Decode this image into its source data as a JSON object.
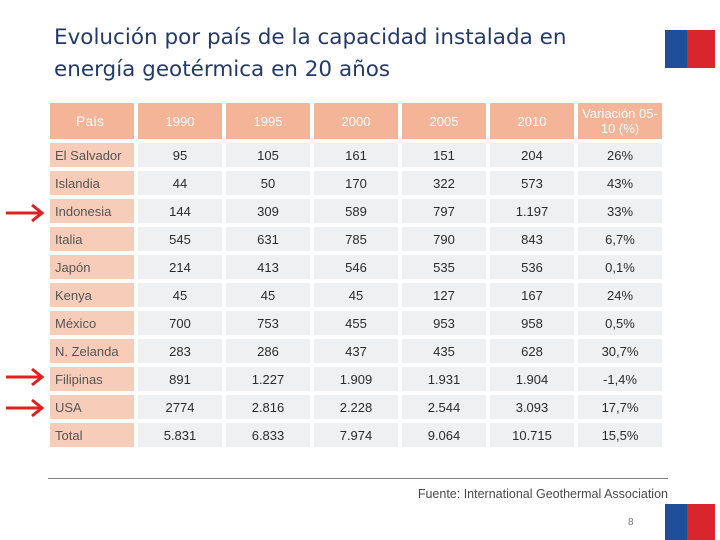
{
  "slide": {
    "title": "Evolución por país de la capacidad instalada en energía geotérmica en 20 años",
    "source": "Fuente: International Geothermal Association",
    "page_number": "8"
  },
  "table": {
    "headers": [
      "País",
      "1990",
      "1995",
      "2000",
      "2005",
      "2010",
      "Variación 05-10 (%)"
    ],
    "rows": [
      [
        "El Salvador",
        "95",
        "105",
        "161",
        "151",
        "204",
        "26%"
      ],
      [
        "Islandia",
        "44",
        "50",
        "170",
        "322",
        "573",
        "43%"
      ],
      [
        "Indonesia",
        "144",
        "309",
        "589",
        "797",
        "1.197",
        "33%"
      ],
      [
        "Italia",
        "545",
        "631",
        "785",
        "790",
        "843",
        "6,7%"
      ],
      [
        "Japón",
        "214",
        "413",
        "546",
        "535",
        "536",
        "0,1%"
      ],
      [
        "Kenya",
        "45",
        "45",
        "45",
        "127",
        "167",
        "24%"
      ],
      [
        "México",
        "700",
        "753",
        "455",
        "953",
        "958",
        "0,5%"
      ],
      [
        "N. Zelanda",
        "283",
        "286",
        "437",
        "435",
        "628",
        "30,7%"
      ],
      [
        "Filipinas",
        "891",
        "1.227",
        "1.909",
        "1.931",
        "1.904",
        "-1,4%"
      ],
      [
        "USA",
        "2774",
        "2.816",
        "2.228",
        "2.544",
        "3.093",
        "17,7%"
      ],
      [
        "Total",
        "5.831",
        "6.833",
        "7.974",
        "9.064",
        "10.715",
        "15,5%"
      ]
    ]
  },
  "highlighted_rows": [
    "Indonesia",
    "Filipinas",
    "USA"
  ],
  "colors": {
    "header_bg": "#f3b498",
    "country_bg": "#f7cdb9",
    "cell_bg": "#eff0f1",
    "title": "#233a6b",
    "arrow": "#e02020",
    "flag_blue": "#1f4e9a",
    "flag_red": "#d9262c"
  }
}
